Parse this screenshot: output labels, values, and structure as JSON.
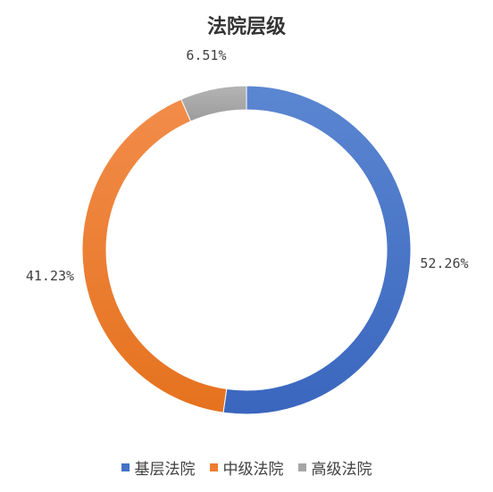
{
  "chart_data": {
    "type": "pie",
    "subtype": "donut",
    "title": "法院层级",
    "categories": [
      "基层法院",
      "中级法院",
      "高级法院"
    ],
    "values": [
      52.26,
      41.23,
      6.51
    ],
    "value_labels": [
      "52.26%",
      "41.23%",
      "6.51%"
    ],
    "colors": [
      "#4472C4",
      "#ED7D31",
      "#A5A5A5"
    ],
    "legend_position": "bottom"
  }
}
